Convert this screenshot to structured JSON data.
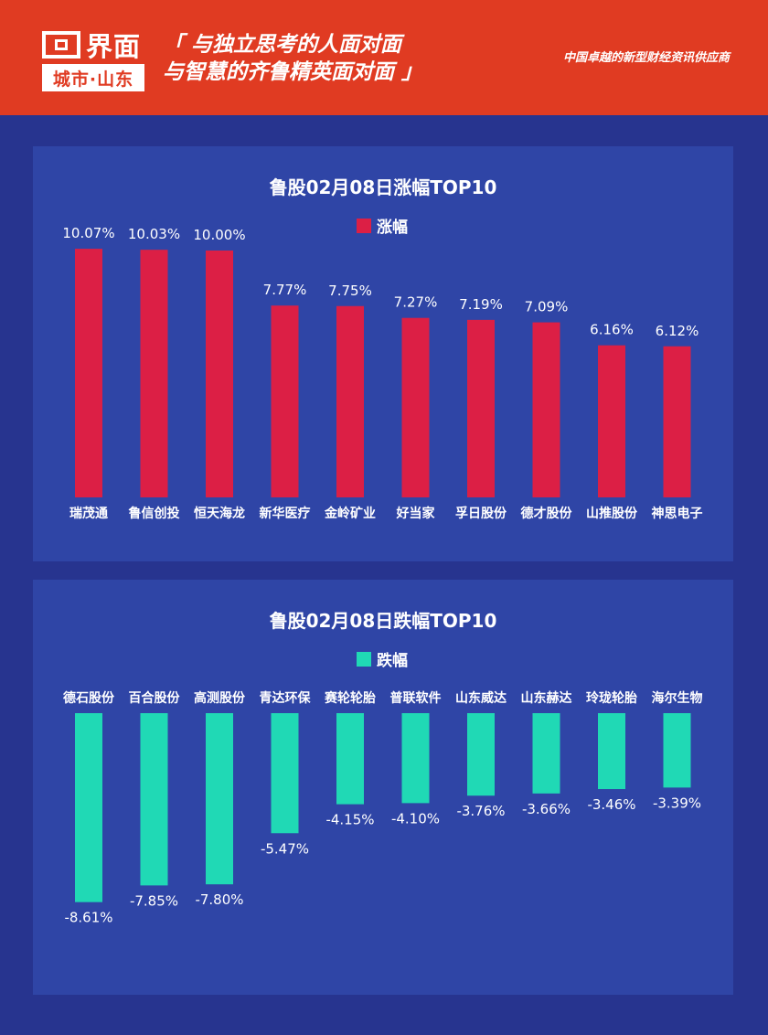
{
  "header": {
    "logo_name": "界面",
    "logo_sub": "城市·山东",
    "slogan_line1": "「 与独立思考的人面对面",
    "slogan_line2": "与智慧的齐鲁精英面对面 」",
    "tagline": "中国卓越的新型财经资讯供应商"
  },
  "colors": {
    "header": "#e03b22",
    "background": "#27348f",
    "panel": "#2f45a6",
    "gain": "#dc1f45",
    "loss": "#20d9b5"
  },
  "chart_data": [
    {
      "type": "bar",
      "title": "鲁股02月08日涨幅TOP10",
      "legend": "top-center",
      "categories": [
        "瑞茂通",
        "鲁信创投",
        "恒天海龙",
        "新华医疗",
        "金岭矿业",
        "好当家",
        "孚日股份",
        "德才股份",
        "山推股份",
        "神思电子"
      ],
      "series": [
        {
          "name": "涨幅",
          "values": [
            10.07,
            10.03,
            10.0,
            7.77,
            7.75,
            7.27,
            7.19,
            7.09,
            6.16,
            6.12
          ],
          "labels": [
            "10.07%",
            "10.03%",
            "10.00%",
            "7.77%",
            "7.75%",
            "7.27%",
            "7.19%",
            "7.09%",
            "6.16%",
            "6.12%"
          ],
          "color": "#dc1f45"
        }
      ],
      "ylim": [
        0,
        11
      ]
    },
    {
      "type": "bar",
      "title": "鲁股02月08日跌幅TOP10",
      "legend": "top-center",
      "categories": [
        "德石股份",
        "百合股份",
        "高测股份",
        "青达环保",
        "赛轮轮胎",
        "普联软件",
        "山东威达",
        "山东赫达",
        "玲珑轮胎",
        "海尔生物"
      ],
      "series": [
        {
          "name": "跌幅",
          "values": [
            -8.61,
            -7.85,
            -7.8,
            -5.47,
            -4.15,
            -4.1,
            -3.76,
            -3.66,
            -3.46,
            -3.39
          ],
          "labels": [
            "-8.61%",
            "-7.85%",
            "-7.80%",
            "-5.47%",
            "-4.15%",
            "-4.10%",
            "-3.76%",
            "-3.66%",
            "-3.46%",
            "-3.39%"
          ],
          "color": "#20d9b5"
        }
      ],
      "ylim": [
        -9,
        0
      ]
    }
  ]
}
